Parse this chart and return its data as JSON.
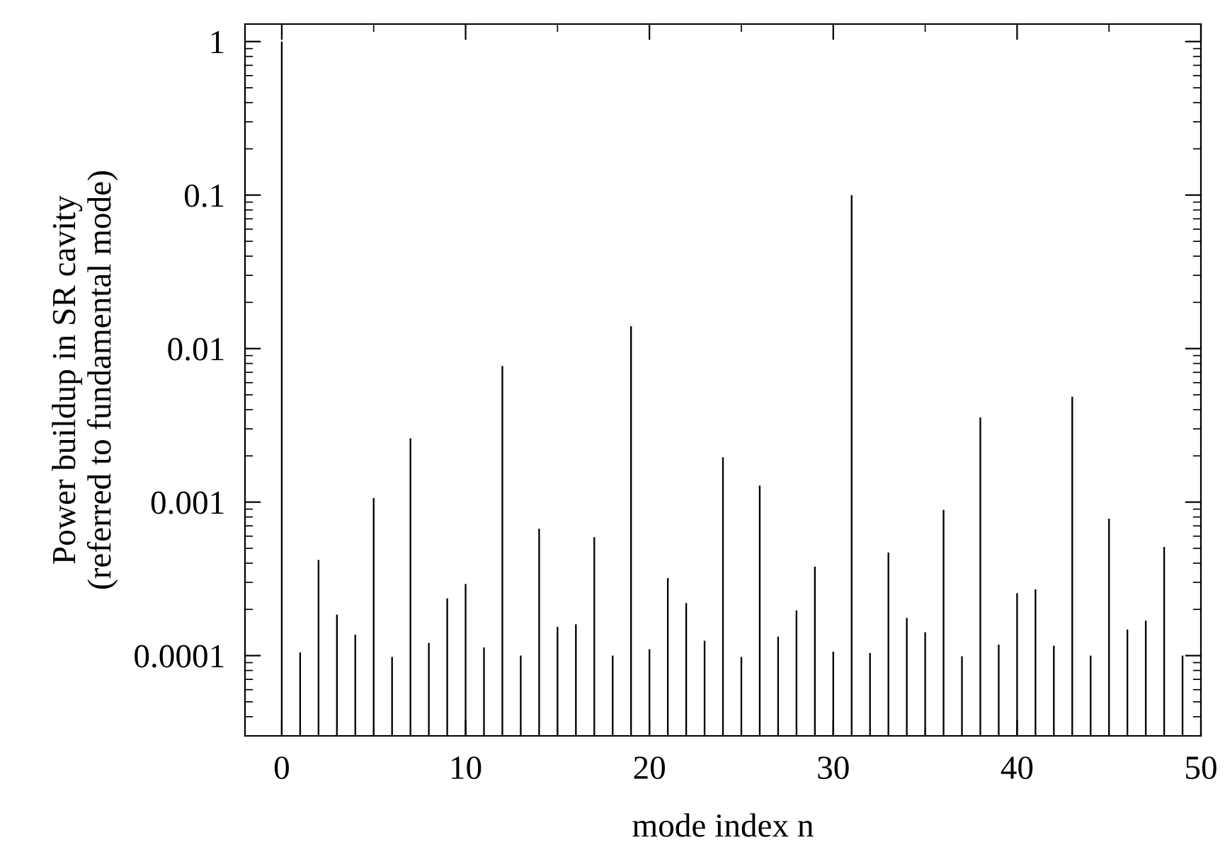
{
  "chart_data": {
    "type": "bar",
    "xlabel": "mode index n",
    "ylabel": "Power buildup in SR cavity\n(referred to fundamental mode)",
    "x": [
      0,
      1,
      2,
      3,
      4,
      5,
      6,
      7,
      8,
      9,
      10,
      11,
      12,
      13,
      14,
      15,
      16,
      17,
      18,
      19,
      20,
      21,
      22,
      23,
      24,
      25,
      26,
      27,
      28,
      29,
      30,
      31,
      32,
      33,
      34,
      35,
      36,
      37,
      38,
      39,
      40,
      41,
      42,
      43,
      44,
      45,
      46,
      47,
      48,
      49
    ],
    "values": [
      1,
      0.000105,
      0.00042,
      0.000185,
      0.000137,
      0.00106,
      9.8e-05,
      0.0026,
      0.000121,
      0.000236,
      0.000293,
      0.000113,
      0.0077,
      0.0001,
      0.00067,
      0.000154,
      0.00016,
      0.00059,
      0.0001,
      0.014,
      0.00011,
      0.00032,
      0.00022,
      0.000125,
      0.00196,
      9.8e-05,
      0.00128,
      0.000133,
      0.000197,
      0.00038,
      0.000106,
      0.1,
      0.000104,
      0.00047,
      0.000176,
      0.000142,
      0.00089,
      9.9e-05,
      0.00356,
      0.000118,
      0.000255,
      0.00027,
      0.000116,
      0.00486,
      0.0001,
      0.00078,
      0.000148,
      0.000169,
      0.00051,
      0.0001
    ],
    "color": "#000000",
    "log": "y",
    "xlim": [
      -2,
      50
    ],
    "xticks": [
      0,
      10,
      20,
      30,
      40,
      50
    ],
    "ylim": [
      3e-05,
      1.3
    ],
    "yticks": [
      0.0001,
      0.001,
      0.01,
      0.1,
      1
    ],
    "grid": false,
    "legend": false
  }
}
